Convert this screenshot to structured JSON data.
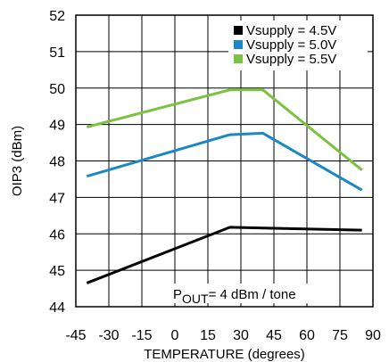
{
  "chart_data": {
    "type": "line",
    "xlabel": "TEMPERATURE (degrees)",
    "ylabel": "OIP3 (dBm)",
    "xlim": [
      -45,
      90
    ],
    "ylim": [
      44,
      52
    ],
    "x_ticks": [
      "-45",
      "-30",
      "-15",
      "0",
      "15",
      "30",
      "45",
      "60",
      "75",
      "90"
    ],
    "y_ticks": [
      "44",
      "45",
      "46",
      "47",
      "48",
      "49",
      "50",
      "51",
      "52"
    ],
    "grid": true,
    "legend_position": "top-right",
    "annotation": {
      "main": "P",
      "sub": "OUT",
      "rest": "= 4 dBm / tone"
    },
    "series": [
      {
        "name": "Vsupply = 4.5V",
        "color": "#000000",
        "x": [
          -40,
          25,
          40,
          85
        ],
        "y": [
          44.65,
          46.18,
          46.16,
          46.1
        ]
      },
      {
        "name": "Vsupply = 5.0V",
        "color": "#1b88c6",
        "x": [
          -40,
          25,
          40,
          85
        ],
        "y": [
          47.58,
          48.72,
          48.76,
          47.2
        ]
      },
      {
        "name": "Vsupply = 5.5V",
        "color": "#7cc242",
        "x": [
          -40,
          25,
          40,
          85
        ],
        "y": [
          48.93,
          49.95,
          49.95,
          47.75
        ]
      }
    ]
  }
}
